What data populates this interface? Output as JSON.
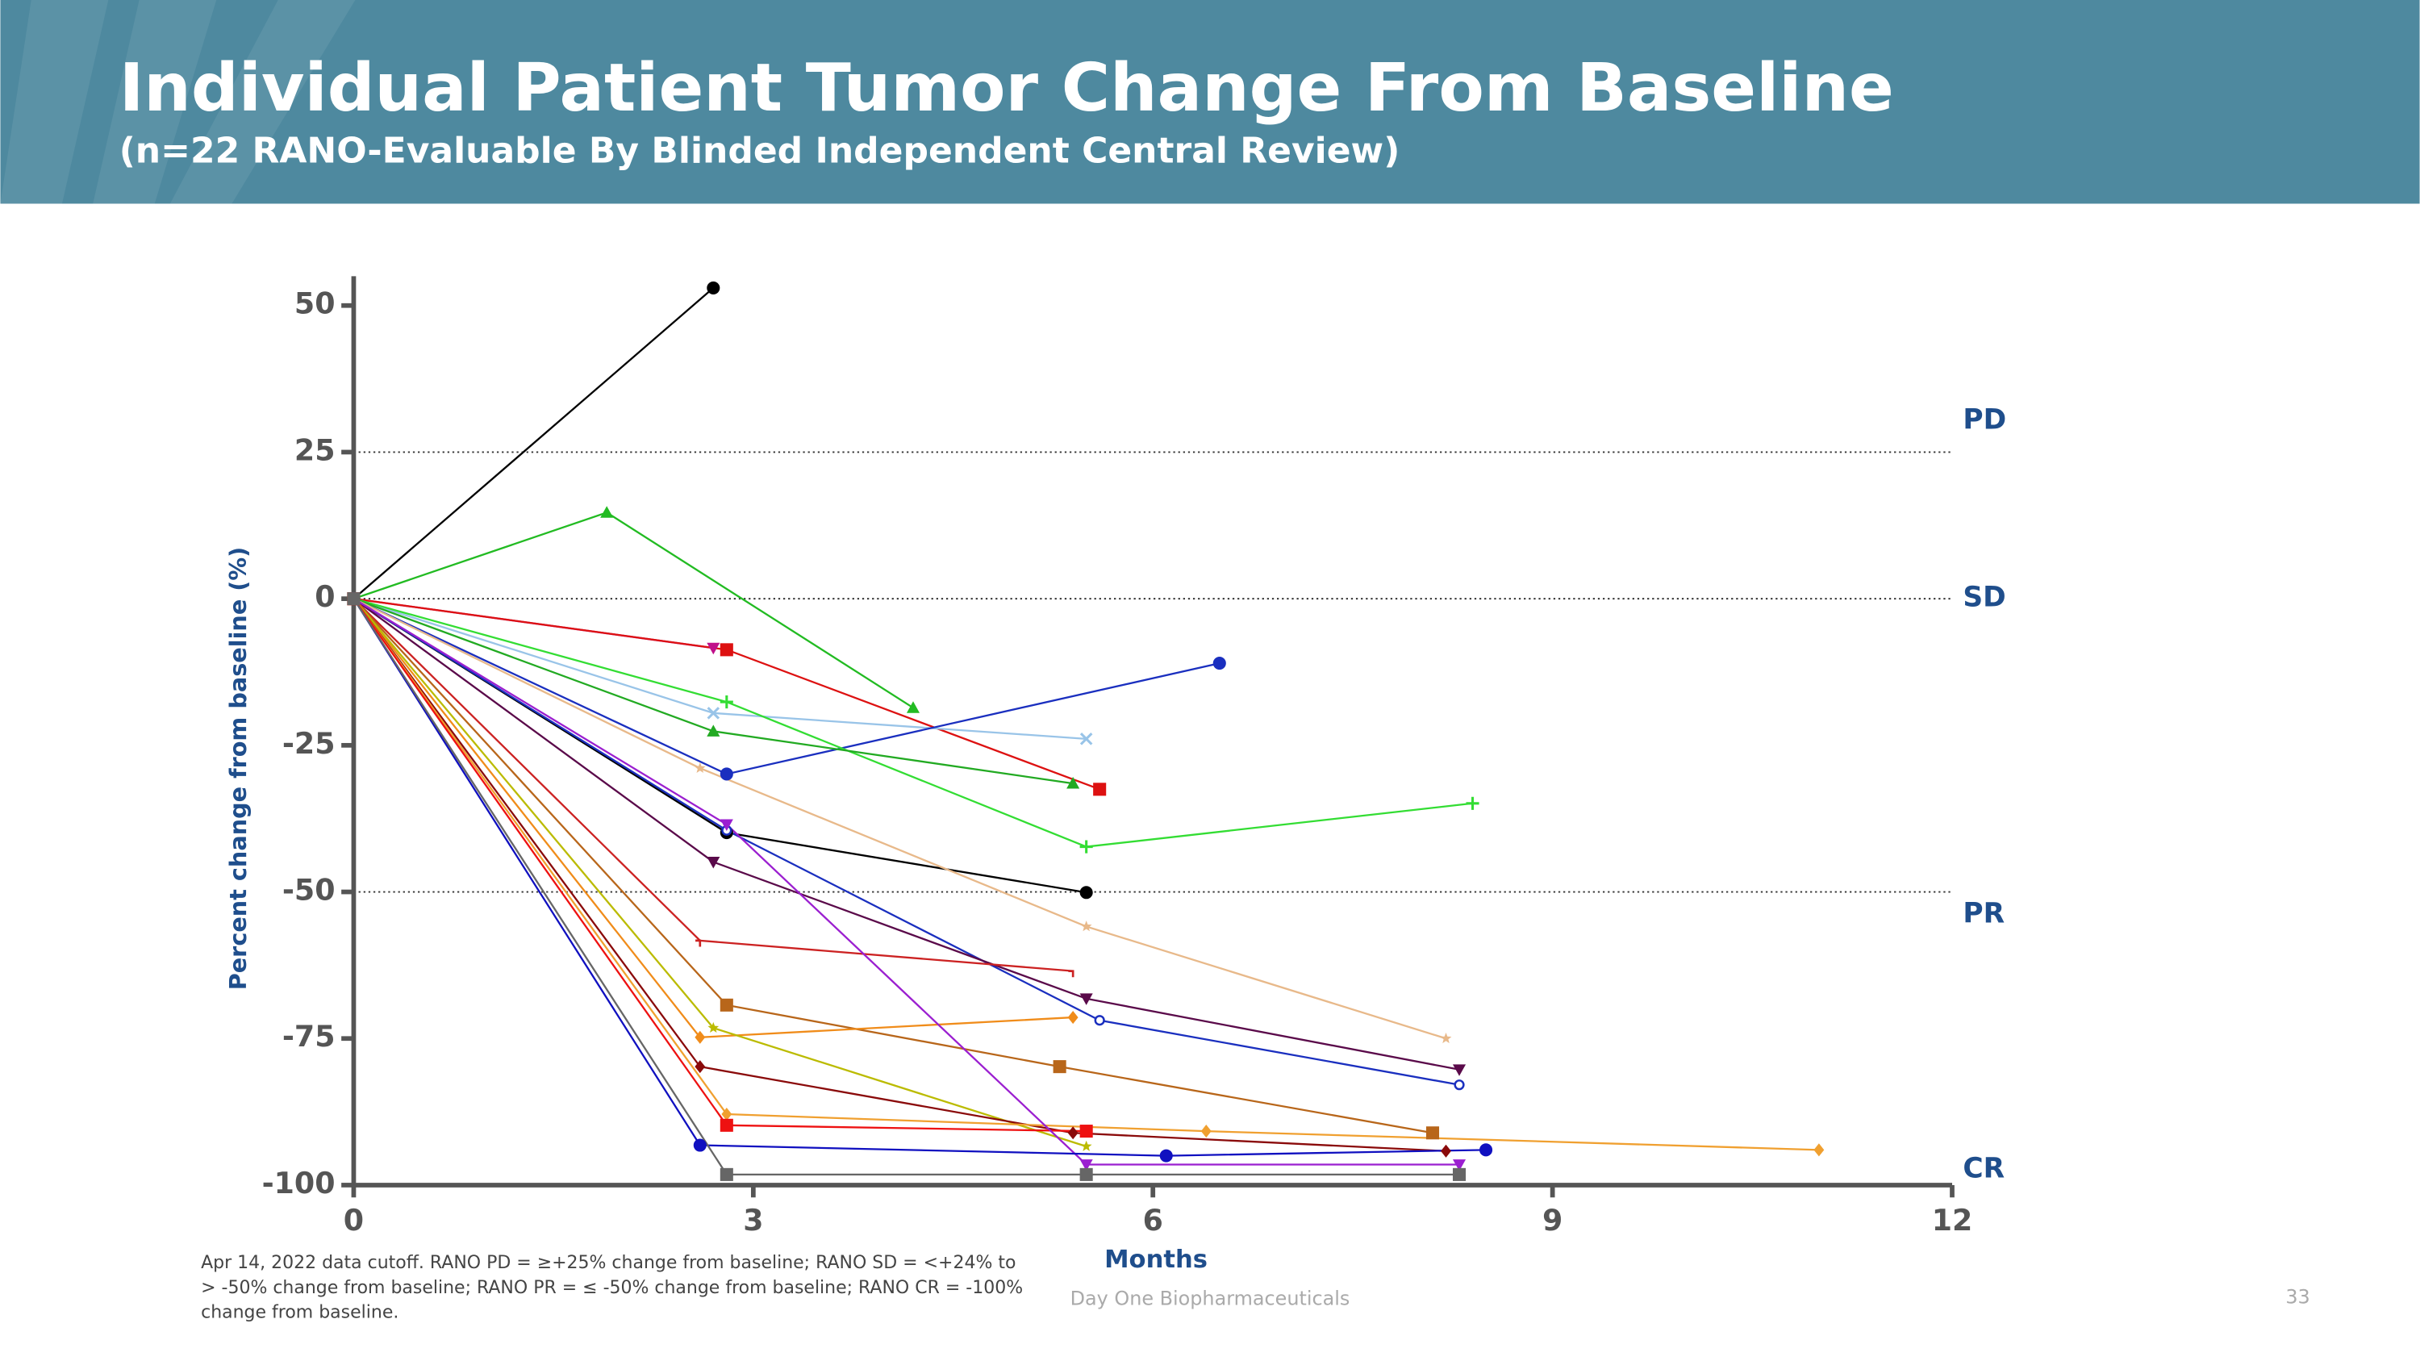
{
  "header": {
    "title": "Individual Patient Tumor Change From Baseline",
    "subtitle": "(n=22 RANO-Evaluable By Blinded Independent Central Review)"
  },
  "footer": {
    "note": "Apr 14, 2022 data cutoff. RANO PD = ≥+25% change from baseline; RANO SD = <+24% to > -50% change from baseline; RANO PR = ≤ -50% change from baseline; RANO CR = -100% change from baseline.",
    "company": "Day One Biopharmaceuticals",
    "page": 33
  },
  "chart_data": {
    "type": "line",
    "x_label": "Months",
    "y_label": "Percent change from baseline (%)",
    "xlim": [
      0,
      12
    ],
    "xticks": [
      0,
      3,
      6,
      9,
      12
    ],
    "ylim": [
      -100,
      55
    ],
    "yticks": [
      50,
      25,
      0,
      -25,
      -50,
      -75,
      -100
    ],
    "reference_lines": [
      25,
      0,
      -50
    ],
    "response_labels": [
      "PD",
      "SD",
      "PR",
      "CR"
    ],
    "series": [
      {
        "color": "#000000",
        "marker": "circle",
        "x": [
          0,
          2.7
        ],
        "values": [
          0,
          53
        ]
      },
      {
        "color": "#22bb22",
        "marker": "triangle",
        "x": [
          0,
          1.9,
          4.2
        ],
        "values": [
          0,
          14.7,
          -18.6
        ]
      },
      {
        "color": "#c0108a",
        "marker": "triangle-down",
        "x": [
          0,
          2.7
        ],
        "values": [
          0,
          -8.4
        ]
      },
      {
        "color": "#dd1111",
        "marker": "square",
        "x": [
          0,
          2.8,
          5.6
        ],
        "values": [
          0,
          -8.7,
          -32.5
        ]
      },
      {
        "color": "#99c4e8",
        "marker": "x",
        "x": [
          0,
          2.7,
          5.5
        ],
        "values": [
          0,
          -19.5,
          -23.9
        ]
      },
      {
        "color": "#1a2fbf",
        "marker": "circle",
        "x": [
          0,
          2.8,
          6.5
        ],
        "values": [
          0,
          -29.9,
          -11
        ]
      },
      {
        "color": "#33dd33",
        "marker": "plus",
        "x": [
          0,
          2.8,
          5.5,
          8.4
        ],
        "values": [
          0,
          -17.6,
          -42.3,
          -34.9
        ]
      },
      {
        "color": "#22aa22",
        "marker": "triangle",
        "x": [
          0,
          2.7,
          5.4
        ],
        "values": [
          0,
          -22.6,
          -31.5
        ]
      },
      {
        "color": "#000000",
        "marker": "circle",
        "x": [
          0,
          2.8,
          5.5
        ],
        "values": [
          0,
          -39.9,
          -50.1
        ]
      },
      {
        "color": "#e8b98a",
        "marker": "star",
        "x": [
          0,
          2.6,
          5.5,
          8.2
        ],
        "values": [
          0,
          -28.9,
          -55.9,
          -75
        ]
      },
      {
        "color": "#1a2fbf",
        "marker": "open-circle",
        "x": [
          0,
          2.8,
          5.6,
          8.3
        ],
        "values": [
          0,
          -39.5,
          -71.9,
          -82.9
        ]
      },
      {
        "color": "#5a0a4a",
        "marker": "triangle-down",
        "x": [
          0,
          2.7,
          5.5,
          8.3
        ],
        "values": [
          0,
          -44.9,
          -68.2,
          -80.3
        ]
      },
      {
        "color": "#cc2222",
        "marker": "tick",
        "x": [
          0,
          2.6,
          5.4
        ],
        "values": [
          0,
          -58.3,
          -63.5
        ]
      },
      {
        "color": "#b8661a",
        "marker": "square",
        "x": [
          0,
          2.8,
          5.3,
          8.1
        ],
        "values": [
          0,
          -69.3,
          -79.8,
          -91.1
        ]
      },
      {
        "color": "#f08c1a",
        "marker": "diamond",
        "x": [
          0,
          2.6,
          5.4
        ],
        "values": [
          0,
          -74.8,
          -71.4
        ]
      },
      {
        "color": "#bbbb00",
        "marker": "star",
        "x": [
          0,
          2.7,
          5.5
        ],
        "values": [
          0,
          -73.2,
          -93.4
        ]
      },
      {
        "color": "#8a0a0a",
        "marker": "diamond",
        "x": [
          0,
          2.6,
          5.4,
          8.2
        ],
        "values": [
          0,
          -79.8,
          -91.1,
          -94.2
        ]
      },
      {
        "color": "#f0a030",
        "marker": "diamond",
        "x": [
          0,
          2.8,
          6.4,
          11
        ],
        "values": [
          0,
          -87.9,
          -90.8,
          -94
        ]
      },
      {
        "color": "#ee1111",
        "marker": "square",
        "x": [
          0,
          2.8,
          5.5
        ],
        "values": [
          0,
          -89.8,
          -90.8
        ]
      },
      {
        "color": "#9b1fd0",
        "marker": "triangle-down",
        "x": [
          0,
          2.8,
          5.5,
          8.3
        ],
        "values": [
          0,
          -38.5,
          -96.5,
          -96.5
        ]
      },
      {
        "color": "#1010c0",
        "marker": "circle",
        "x": [
          0,
          2.6,
          6.1,
          8.5
        ],
        "values": [
          0,
          -93.2,
          -95,
          -94
        ]
      },
      {
        "color": "#666666",
        "marker": "square",
        "x": [
          0,
          2.8,
          5.5,
          8.3
        ],
        "values": [
          0,
          -98.2,
          -98.2,
          -98.2
        ]
      }
    ]
  }
}
